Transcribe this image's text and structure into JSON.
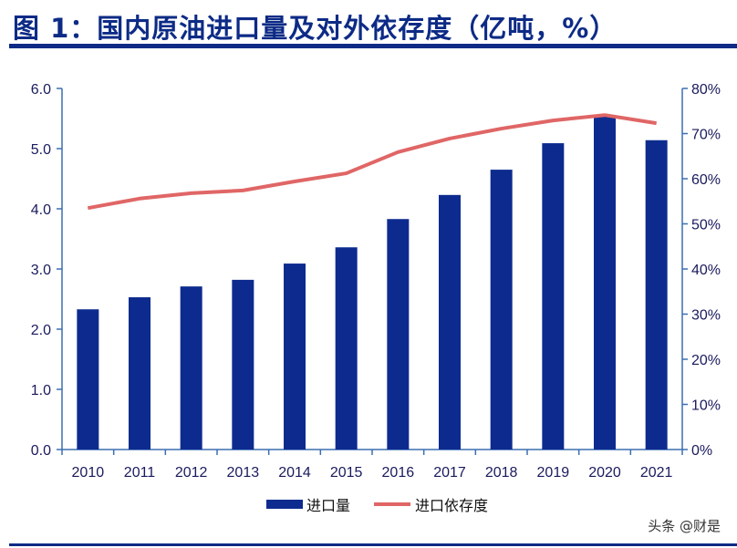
{
  "title": "图 1：国内原油进口量及对外依存度（亿吨，%）",
  "watermark": "头条 @财是",
  "colors": {
    "bar": "#0d2b8f",
    "line": "#e06666",
    "axis": "#3b6fb0",
    "title": "#0d2b86"
  },
  "chart_data": {
    "type": "bar+line",
    "title": "图 1：国内原油进口量及对外依存度（亿吨，%）",
    "categories": [
      "2010",
      "2011",
      "2012",
      "2013",
      "2014",
      "2015",
      "2016",
      "2017",
      "2018",
      "2019",
      "2020",
      "2021"
    ],
    "series": [
      {
        "name": "进口量",
        "type": "bar",
        "axis": "left",
        "values": [
          2.33,
          2.53,
          2.71,
          2.82,
          3.09,
          3.36,
          3.83,
          4.23,
          4.65,
          5.09,
          5.56,
          5.14
        ]
      },
      {
        "name": "进口依存度",
        "type": "line",
        "axis": "right",
        "values": [
          53.5,
          55.6,
          56.8,
          57.4,
          59.4,
          61.2,
          65.9,
          68.9,
          71.1,
          72.9,
          74.1,
          72.3
        ]
      }
    ],
    "y_left": {
      "range": [
        0,
        6
      ],
      "ticks": [
        "0.0",
        "1.0",
        "2.0",
        "3.0",
        "4.0",
        "5.0",
        "6.0"
      ]
    },
    "y_right": {
      "range": [
        0,
        80
      ],
      "ticks": [
        "0%",
        "10%",
        "20%",
        "30%",
        "40%",
        "50%",
        "60%",
        "70%",
        "80%"
      ]
    },
    "grid": false,
    "legend_position": "bottom"
  }
}
